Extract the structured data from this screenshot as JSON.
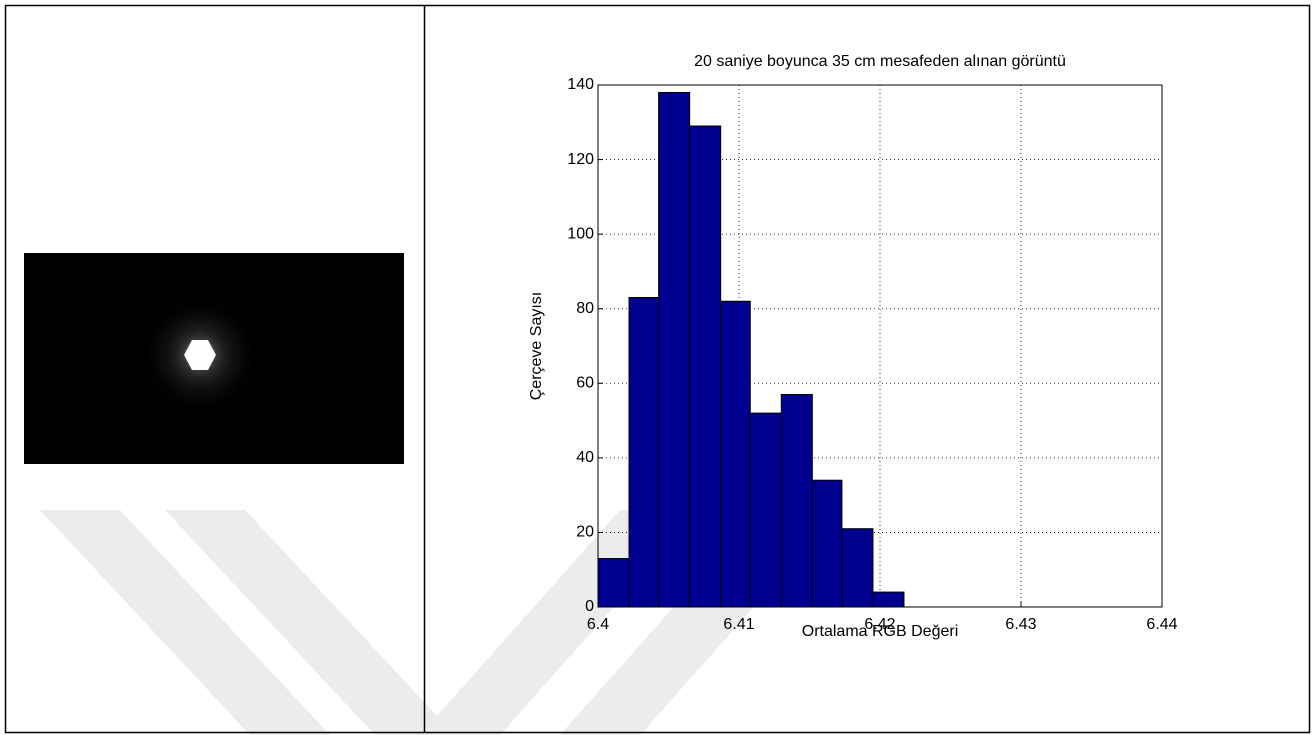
{
  "chart_data": {
    "type": "histogram",
    "title": "20 saniye  boyunca 35 cm mesafeden alınan görüntü",
    "xlabel": "Ortalama RGB Değeri",
    "ylabel": "Çerçeve Sayısı",
    "bins": [
      6.4,
      6.4022,
      6.4043,
      6.4065,
      6.4087,
      6.4108,
      6.413,
      6.4152,
      6.4173,
      6.4195,
      6.4217
    ],
    "values": [
      13,
      83,
      138,
      129,
      82,
      52,
      57,
      34,
      21,
      4
    ],
    "color": "#000090",
    "edge_color": "#000000",
    "xlim": [
      6.4,
      6.44
    ],
    "xticks": [
      6.4,
      6.41,
      6.42,
      6.43,
      6.44
    ],
    "ylim": [
      0,
      140
    ],
    "yticks": [
      0,
      20,
      40,
      60,
      80,
      100,
      120,
      140
    ],
    "grid": true
  }
}
